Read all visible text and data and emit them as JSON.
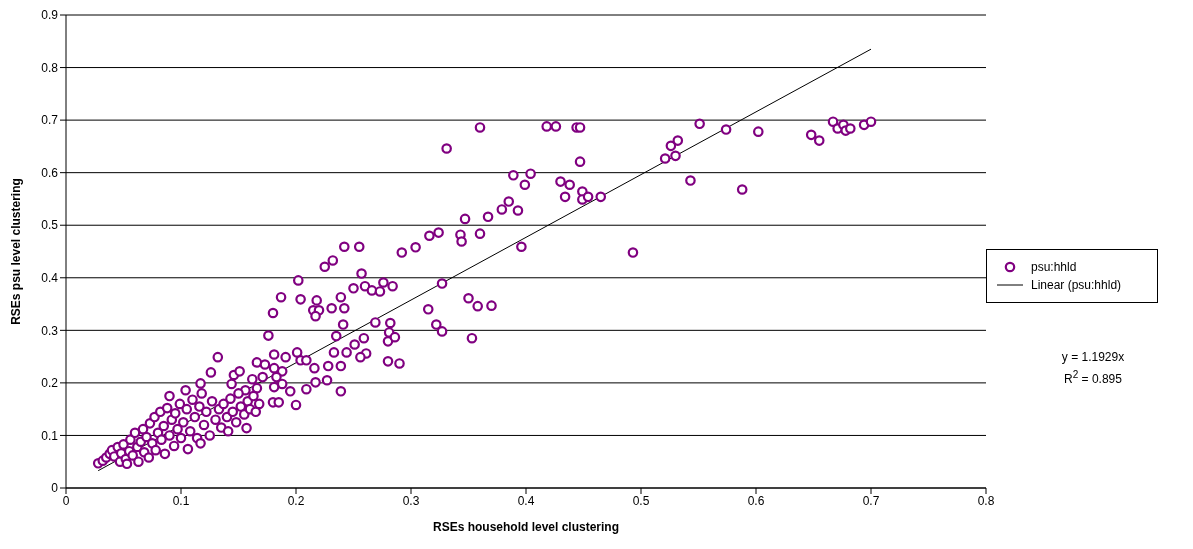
{
  "chart_data": {
    "type": "scatter",
    "xlabel": "RSEs household level clustering",
    "ylabel": "RSEs psu level clustering",
    "xlim": [
      0,
      0.8
    ],
    "ylim": [
      0,
      0.9
    ],
    "xticks": [
      0,
      0.1,
      0.2,
      0.3,
      0.4,
      0.5,
      0.6,
      0.7,
      0.8
    ],
    "yticks": [
      0,
      0.1,
      0.2,
      0.3,
      0.4,
      0.5,
      0.6,
      0.7,
      0.8,
      0.9
    ],
    "grid": "y",
    "legend": "right",
    "annotations": [
      "y = 1.1929x",
      "R$^{2}$ = 0.895"
    ],
    "series": [
      {
        "name": "psu:hhld",
        "color": "#800080",
        "marker": "circle",
        "x": [
          0.331,
          0.36,
          0.418,
          0.426,
          0.444,
          0.447,
          0.447,
          0.43,
          0.438,
          0.389,
          0.399,
          0.404,
          0.385,
          0.379,
          0.393,
          0.367,
          0.36,
          0.347,
          0.343,
          0.344,
          0.324,
          0.316,
          0.304,
          0.292,
          0.551,
          0.574,
          0.602,
          0.648,
          0.655,
          0.667,
          0.671,
          0.676,
          0.678,
          0.682,
          0.694,
          0.7,
          0.526,
          0.532,
          0.521,
          0.53,
          0.543,
          0.588,
          0.434,
          0.449,
          0.449,
          0.454,
          0.465,
          0.396,
          0.493,
          0.242,
          0.255,
          0.225,
          0.232,
          0.257,
          0.202,
          0.25,
          0.26,
          0.266,
          0.276,
          0.273,
          0.284,
          0.327,
          0.187,
          0.18,
          0.204,
          0.218,
          0.215,
          0.22,
          0.217,
          0.231,
          0.242,
          0.239,
          0.241,
          0.269,
          0.315,
          0.322,
          0.327,
          0.35,
          0.358,
          0.37,
          0.353,
          0.282,
          0.281,
          0.28,
          0.286,
          0.259,
          0.28,
          0.29,
          0.251,
          0.244,
          0.261,
          0.256,
          0.235,
          0.233,
          0.239,
          0.228,
          0.216,
          0.227,
          0.217,
          0.239,
          0.201,
          0.204,
          0.209,
          0.191,
          0.181,
          0.176,
          0.166,
          0.173,
          0.188,
          0.181,
          0.162,
          0.171,
          0.183,
          0.188,
          0.181,
          0.195,
          0.209,
          0.2,
          0.18,
          0.185,
          0.166,
          0.132,
          0.126,
          0.146,
          0.151,
          0.144,
          0.156,
          0.117,
          0.104,
          0.118,
          0.028,
          0.032,
          0.035,
          0.038,
          0.04,
          0.042,
          0.045,
          0.047,
          0.048,
          0.05,
          0.052,
          0.053,
          0.055,
          0.056,
          0.058,
          0.06,
          0.062,
          0.063,
          0.065,
          0.067,
          0.068,
          0.07,
          0.072,
          0.073,
          0.075,
          0.077,
          0.078,
          0.08,
          0.082,
          0.083,
          0.085,
          0.086,
          0.088,
          0.09,
          0.09,
          0.092,
          0.094,
          0.095,
          0.097,
          0.099,
          0.1,
          0.102,
          0.105,
          0.106,
          0.108,
          0.11,
          0.112,
          0.114,
          0.116,
          0.117,
          0.12,
          0.122,
          0.125,
          0.127,
          0.13,
          0.133,
          0.135,
          0.137,
          0.14,
          0.141,
          0.143,
          0.145,
          0.148,
          0.15,
          0.152,
          0.155,
          0.157,
          0.158,
          0.16,
          0.163,
          0.165,
          0.168
        ],
        "values": [
          0.646,
          0.686,
          0.688,
          0.688,
          0.686,
          0.686,
          0.621,
          0.583,
          0.577,
          0.595,
          0.577,
          0.598,
          0.545,
          0.53,
          0.528,
          0.516,
          0.484,
          0.512,
          0.482,
          0.469,
          0.486,
          0.48,
          0.458,
          0.448,
          0.693,
          0.682,
          0.678,
          0.672,
          0.661,
          0.697,
          0.684,
          0.691,
          0.68,
          0.684,
          0.691,
          0.697,
          0.651,
          0.661,
          0.627,
          0.632,
          0.585,
          0.568,
          0.554,
          0.564,
          0.549,
          0.554,
          0.554,
          0.459,
          0.448,
          0.459,
          0.459,
          0.421,
          0.433,
          0.408,
          0.395,
          0.38,
          0.384,
          0.376,
          0.391,
          0.374,
          0.384,
          0.389,
          0.363,
          0.333,
          0.359,
          0.357,
          0.338,
          0.338,
          0.327,
          0.342,
          0.342,
          0.363,
          0.311,
          0.315,
          0.34,
          0.311,
          0.298,
          0.361,
          0.346,
          0.347,
          0.285,
          0.314,
          0.296,
          0.279,
          0.287,
          0.285,
          0.241,
          0.237,
          0.273,
          0.258,
          0.256,
          0.249,
          0.289,
          0.258,
          0.232,
          0.232,
          0.228,
          0.205,
          0.201,
          0.184,
          0.258,
          0.243,
          0.243,
          0.249,
          0.254,
          0.29,
          0.239,
          0.235,
          0.222,
          0.228,
          0.207,
          0.211,
          0.211,
          0.198,
          0.192,
          0.184,
          0.188,
          0.158,
          0.163,
          0.163,
          0.19,
          0.249,
          0.22,
          0.215,
          0.222,
          0.198,
          0.186,
          0.199,
          0.186,
          0.18,
          0.047,
          0.052,
          0.058,
          0.065,
          0.072,
          0.06,
          0.078,
          0.05,
          0.066,
          0.083,
          0.055,
          0.046,
          0.07,
          0.092,
          0.062,
          0.105,
          0.078,
          0.05,
          0.088,
          0.112,
          0.068,
          0.097,
          0.058,
          0.123,
          0.085,
          0.135,
          0.072,
          0.105,
          0.145,
          0.092,
          0.118,
          0.065,
          0.152,
          0.175,
          0.1,
          0.13,
          0.08,
          0.142,
          0.112,
          0.16,
          0.095,
          0.125,
          0.15,
          0.074,
          0.108,
          0.168,
          0.135,
          0.095,
          0.155,
          0.085,
          0.12,
          0.145,
          0.1,
          0.165,
          0.13,
          0.15,
          0.115,
          0.16,
          0.135,
          0.108,
          0.17,
          0.145,
          0.125,
          0.18,
          0.155,
          0.14,
          0.114,
          0.165,
          0.15,
          0.175,
          0.145,
          0.16
        ]
      },
      {
        "name": "Linear (psu:hhld)",
        "type": "line",
        "color": "#000000",
        "x": [
          0.028,
          0.7
        ],
        "values": [
          0.033,
          0.835
        ],
        "marker": "none"
      }
    ]
  }
}
